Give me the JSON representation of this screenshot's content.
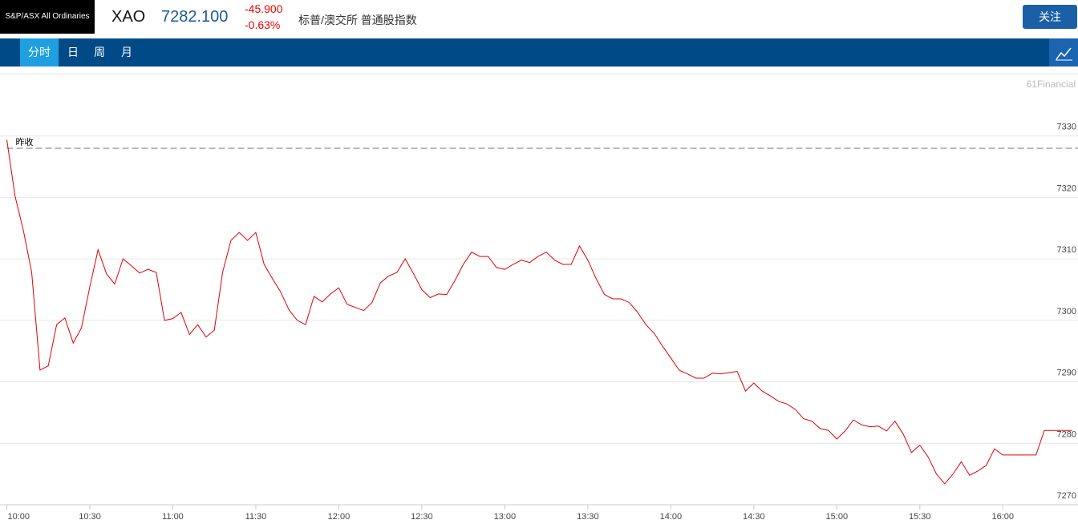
{
  "header": {
    "index_name": "S&P/ASX All Ordinaries",
    "symbol": "XAO",
    "price": "7282.100",
    "change": "-45.900",
    "change_pct": "-0.63%",
    "full_name": "标普/澳交所 普通股指数",
    "button": "关注"
  },
  "tabs": [
    "分时",
    "日",
    "周",
    "月"
  ],
  "watermark": "61Financial",
  "chart_data": {
    "type": "line",
    "color": "#e00000",
    "grid": true,
    "reference_line": {
      "label": "昨收",
      "value": 7328.0
    },
    "x": [
      "10:00",
      "10:03",
      "10:06",
      "10:09",
      "10:12",
      "10:15",
      "10:18",
      "10:21",
      "10:24",
      "10:27",
      "10:30",
      "10:33",
      "10:36",
      "10:39",
      "10:42",
      "10:45",
      "10:48",
      "10:51",
      "10:54",
      "10:57",
      "11:00",
      "11:03",
      "11:06",
      "11:09",
      "11:12",
      "11:15",
      "11:18",
      "11:21",
      "11:24",
      "11:27",
      "11:30",
      "11:33",
      "11:36",
      "11:39",
      "11:42",
      "11:45",
      "11:48",
      "11:51",
      "11:54",
      "11:57",
      "12:00",
      "12:03",
      "12:06",
      "12:09",
      "12:12",
      "12:15",
      "12:18",
      "12:21",
      "12:24",
      "12:27",
      "12:30",
      "12:33",
      "12:36",
      "12:39",
      "12:42",
      "12:45",
      "12:48",
      "12:51",
      "12:54",
      "12:57",
      "13:00",
      "13:03",
      "13:06",
      "13:09",
      "13:12",
      "13:15",
      "13:18",
      "13:21",
      "13:24",
      "13:27",
      "13:30",
      "13:33",
      "13:36",
      "13:39",
      "13:42",
      "13:45",
      "13:48",
      "13:51",
      "13:54",
      "13:57",
      "14:00",
      "14:03",
      "14:06",
      "14:09",
      "14:12",
      "14:15",
      "14:18",
      "14:21",
      "14:24",
      "14:27",
      "14:30",
      "14:33",
      "14:36",
      "14:39",
      "14:42",
      "14:45",
      "14:48",
      "14:51",
      "14:54",
      "14:57",
      "15:00",
      "15:03",
      "15:06",
      "15:09",
      "15:12",
      "15:15",
      "15:18",
      "15:21",
      "15:24",
      "15:27",
      "15:30",
      "15:33",
      "15:36",
      "15:39",
      "15:42",
      "15:45",
      "15:48",
      "15:51",
      "15:54",
      "15:57",
      "16:00",
      "16:06",
      "16:12",
      "16:15",
      "16:25"
    ],
    "values": [
      7329.4,
      7320.2,
      7314.6,
      7307.8,
      7291.9,
      7292.6,
      7299.3,
      7300.4,
      7296.3,
      7298.8,
      7305.5,
      7311.5,
      7307.6,
      7305.9,
      7310.0,
      7308.9,
      7307.7,
      7308.3,
      7307.8,
      7300.0,
      7300.3,
      7301.3,
      7297.7,
      7299.3,
      7297.3,
      7298.4,
      7307.8,
      7313.0,
      7314.3,
      7313.0,
      7314.3,
      7309.1,
      7306.8,
      7304.6,
      7301.7,
      7300.0,
      7299.3,
      7303.9,
      7303.0,
      7304.3,
      7305.3,
      7302.6,
      7302.1,
      7301.6,
      7302.9,
      7306.1,
      7307.2,
      7307.8,
      7310.0,
      7307.6,
      7305.0,
      7303.7,
      7304.3,
      7304.2,
      7306.5,
      7309.1,
      7311.1,
      7310.4,
      7310.4,
      7308.6,
      7308.3,
      7309.1,
      7309.8,
      7309.4,
      7310.4,
      7311.1,
      7309.8,
      7309.1,
      7309.1,
      7312.1,
      7309.8,
      7306.8,
      7304.2,
      7303.5,
      7303.5,
      7302.9,
      7301.3,
      7299.3,
      7297.9,
      7295.8,
      7293.9,
      7291.9,
      7291.3,
      7290.6,
      7290.6,
      7291.4,
      7291.3,
      7291.5,
      7291.7,
      7288.5,
      7289.8,
      7288.5,
      7287.7,
      7286.8,
      7286.4,
      7285.5,
      7284.0,
      7283.6,
      7282.4,
      7282.1,
      7280.7,
      7282.0,
      7283.8,
      7283.0,
      7282.7,
      7282.8,
      7282.0,
      7283.6,
      7281.5,
      7278.5,
      7279.7,
      7277.8,
      7275.0,
      7273.4,
      7275.0,
      7277.0,
      7274.8,
      7275.5,
      7276.4,
      7279.1,
      7278.1,
      7278.1,
      7278.1,
      7282.1,
      7282.1
    ],
    "xlim": [
      "10:00",
      "16:25"
    ],
    "xticks": [
      "10:00",
      "10:30",
      "11:00",
      "11:30",
      "12:00",
      "12:30",
      "13:00",
      "13:30",
      "14:00",
      "14:30",
      "15:00",
      "15:30",
      "16:00"
    ],
    "ylim": [
      7270,
      7340
    ],
    "yticks": [
      7270,
      7280,
      7290,
      7300,
      7310,
      7320,
      7330
    ]
  }
}
